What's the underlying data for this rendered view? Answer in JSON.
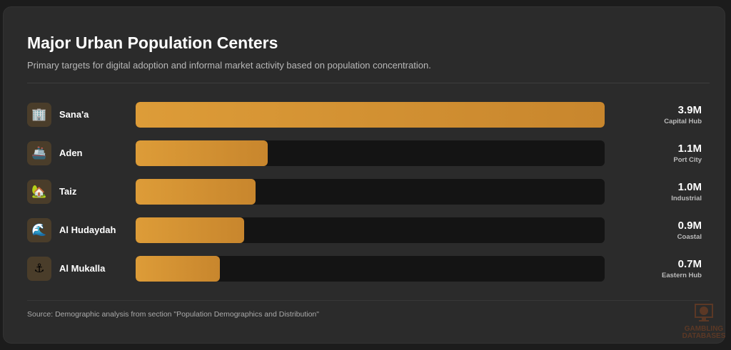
{
  "header": {
    "title": "Major Urban Population Centers",
    "subtitle": "Primary targets for digital adoption and informal market activity based on population concentration."
  },
  "chart_data": {
    "type": "bar",
    "orientation": "horizontal",
    "categories": [
      "Sana'a",
      "Aden",
      "Taiz",
      "Al Hudaydah",
      "Al Mukalla"
    ],
    "values": [
      3.9,
      1.1,
      1.0,
      0.9,
      0.7
    ],
    "value_labels": [
      "3.9M",
      "1.1M",
      "1.0M",
      "0.9M",
      "0.7M"
    ],
    "sublabels": [
      "Capital Hub",
      "Port City",
      "Industrial",
      "Coastal",
      "Eastern Hub"
    ],
    "icons": [
      "office-building-icon",
      "ship-icon",
      "house-garden-icon",
      "wave-icon",
      "anchor-icon"
    ],
    "icon_glyphs": [
      "🏢",
      "🚢",
      "🏡",
      "🌊",
      "⚓"
    ],
    "xlim": [
      0,
      3.9
    ],
    "bar_color": "#dd9c38",
    "track_color": "#141414"
  },
  "footer": {
    "source": "Source: Demographic analysis from section \"Population Demographics and Distribution\""
  },
  "watermark": {
    "text": "GAMBLING DATABASES"
  }
}
